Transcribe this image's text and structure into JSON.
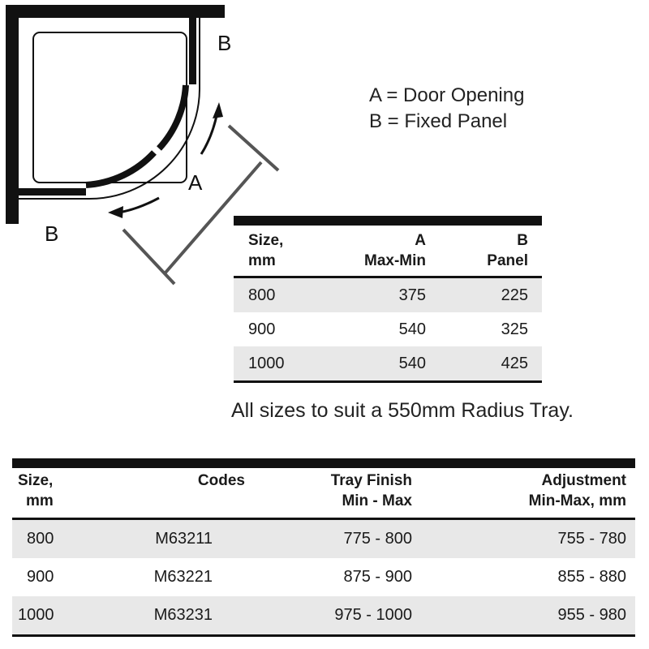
{
  "diagram": {
    "labels": {
      "panel_top": "B",
      "panel_bottom": "B",
      "door": "A"
    }
  },
  "legend": {
    "a": "A = Door Opening",
    "b": "B = Fixed Panel"
  },
  "table_panels": {
    "headers": [
      [
        "Size,",
        "mm"
      ],
      [
        "A",
        "Max-Min"
      ],
      [
        "B",
        "Panel"
      ]
    ],
    "rows": [
      [
        "800",
        "375",
        "225"
      ],
      [
        "900",
        "540",
        "325"
      ],
      [
        "1000",
        "540",
        "425"
      ]
    ]
  },
  "note": "All sizes to suit a 550mm Radius Tray.",
  "table_codes": {
    "headers": [
      [
        "Size,",
        "mm"
      ],
      [
        "Codes",
        ""
      ],
      [
        "Tray Finish",
        "Min - Max"
      ],
      [
        "Adjustment",
        "Min-Max, mm"
      ]
    ],
    "rows": [
      [
        "800",
        "M63211",
        "775 - 800",
        "755 - 780"
      ],
      [
        "900",
        "M63221",
        "875 - 900",
        "855 - 880"
      ],
      [
        "1000",
        "M63231",
        "975 - 1000",
        "955 - 980"
      ]
    ]
  }
}
